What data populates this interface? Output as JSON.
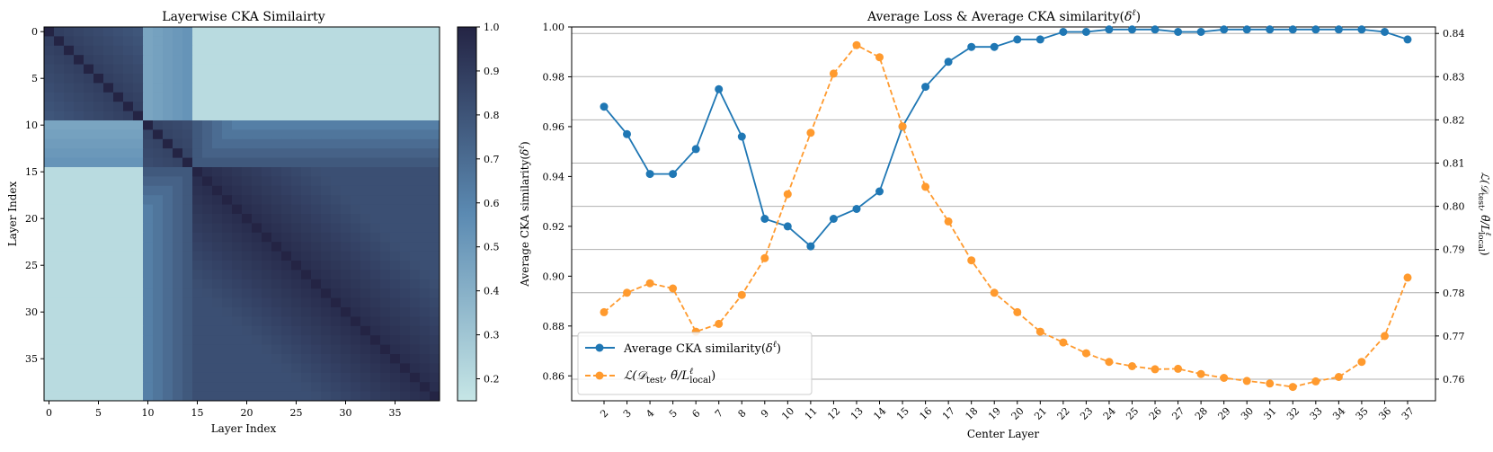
{
  "chart_data": [
    {
      "type": "heatmap",
      "title": "Layerwise CKA Similairty",
      "xlabel": "Layer Index",
      "ylabel": "Layer Index",
      "x_ticks": [
        "0",
        "5",
        "10",
        "15",
        "20",
        "25",
        "30",
        "35"
      ],
      "y_ticks": [
        "0",
        "5",
        "10",
        "15",
        "20",
        "25",
        "30",
        "35"
      ],
      "n_layers": 40,
      "colormap": {
        "low": "#c6e6e6",
        "mid": "#5b8ab2",
        "high": "#242444"
      },
      "colorbar": {
        "min": 0.15,
        "max": 1.0,
        "ticks": [
          "0.2",
          "0.3",
          "0.4",
          "0.5",
          "0.6",
          "0.7",
          "0.8",
          "0.9",
          "1.0"
        ]
      },
      "blocks": [
        {
          "layers": "0-9",
          "within": 0.9,
          "to_10_14": 0.45,
          "to_15_39": 0.2
        },
        {
          "layers": "10-14",
          "within": 0.88,
          "to_15_39": 0.55
        },
        {
          "layers": "15-39",
          "within": 0.97
        }
      ]
    },
    {
      "type": "line",
      "title": "Average Loss & Average CKA similarity(δℓ)",
      "xlabel": "Center Layer",
      "ylabel": "Average CKA similarity(δℓ)",
      "y2label": "ℒ(𝒟_test, θ̃/Lℓ_local)",
      "x": [
        "2",
        "3",
        "4",
        "5",
        "6",
        "7",
        "8",
        "9",
        "10",
        "11",
        "12",
        "13",
        "14",
        "15",
        "16",
        "17",
        "18",
        "19",
        "20",
        "21",
        "22",
        "23",
        "24",
        "25",
        "26",
        "27",
        "28",
        "29",
        "30",
        "31",
        "32",
        "33",
        "34",
        "35",
        "36",
        "37"
      ],
      "ylim": [
        0.85,
        1.0
      ],
      "y_ticks": [
        "0.86",
        "0.88",
        "0.90",
        "0.92",
        "0.94",
        "0.96",
        "0.98",
        "1.00"
      ],
      "y2lim": [
        0.755,
        0.8415
      ],
      "y2_ticks": [
        "0.76",
        "0.77",
        "0.78",
        "0.79",
        "0.80",
        "0.81",
        "0.82",
        "0.83",
        "0.84"
      ],
      "grid": "horizontal",
      "legend_position": "lower-left",
      "series": [
        {
          "name": "Average CKA similarity(δℓ)",
          "axis": "left",
          "color": "#1f77b4",
          "style": "solid",
          "values": [
            0.968,
            0.957,
            0.941,
            0.941,
            0.951,
            0.975,
            0.956,
            0.923,
            0.92,
            0.912,
            0.923,
            0.927,
            0.934,
            0.96,
            0.976,
            0.986,
            0.992,
            0.992,
            0.995,
            0.995,
            0.998,
            0.998,
            0.999,
            0.999,
            0.999,
            0.998,
            0.998,
            0.999,
            0.999,
            0.999,
            0.999,
            0.999,
            0.999,
            0.999,
            0.998,
            0.995
          ]
        },
        {
          "name_parts": [
            "ℒ(𝒟",
            "test",
            ", θ̃/L",
            "ℓ",
            "local",
            ")"
          ],
          "axis": "right",
          "color": "#ff9a2e",
          "style": "dashed",
          "values": [
            0.7755,
            0.78,
            0.7822,
            0.781,
            0.771,
            0.7728,
            0.7795,
            0.788,
            0.8028,
            0.817,
            0.8307,
            0.8373,
            0.8345,
            0.8185,
            0.8045,
            0.7965,
            0.7875,
            0.78,
            0.7755,
            0.771,
            0.7685,
            0.766,
            0.764,
            0.763,
            0.7623,
            0.7624,
            0.7612,
            0.7603,
            0.7596,
            0.759,
            0.7582,
            0.7595,
            0.7605,
            0.764,
            0.77,
            0.7835
          ]
        }
      ]
    }
  ]
}
